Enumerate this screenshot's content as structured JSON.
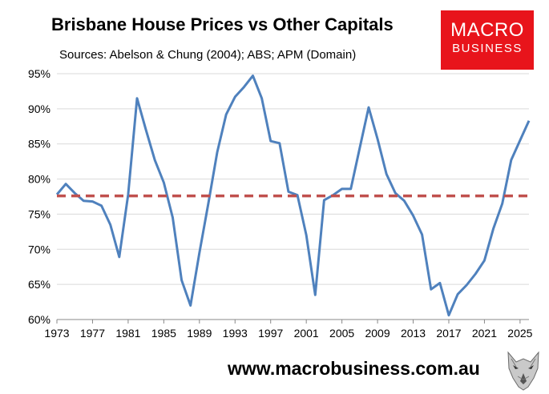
{
  "header": {
    "title": "Brisbane House Prices vs Other Capitals",
    "subtitle": "Sources: Abelson & Chung (2004); ABS; APM (Domain)"
  },
  "logo": {
    "line1": "MACRO",
    "line2": "BUSINESS",
    "color": "#e8141b"
  },
  "footer": {
    "website": "www.macrobusiness.com.au"
  },
  "chart_data": {
    "type": "line",
    "title": "Brisbane House Prices vs Other Capitals",
    "xlim": [
      1973,
      2026
    ],
    "ylim": [
      60,
      95
    ],
    "x_ticks": [
      1973,
      1977,
      1981,
      1985,
      1989,
      1993,
      1997,
      2001,
      2005,
      2009,
      2013,
      2017,
      2021,
      2025
    ],
    "y_ticks": [
      60,
      65,
      70,
      75,
      80,
      85,
      90,
      95
    ],
    "y_tick_labels": [
      "60%",
      "65%",
      "70%",
      "75%",
      "80%",
      "85%",
      "90%",
      "95%"
    ],
    "grid": "horizontal",
    "series": [
      {
        "color": "#4f81bd",
        "style": "solid",
        "x": [
          1973,
          1974,
          1975,
          1976,
          1977,
          1978,
          1979,
          1980,
          1981,
          1982,
          1983,
          1984,
          1985,
          1986,
          1987,
          1988,
          1989,
          1990,
          1991,
          1992,
          1993,
          1994,
          1995,
          1996,
          1997,
          1998,
          1999,
          2000,
          2001,
          2002,
          2003,
          2004,
          2005,
          2006,
          2007,
          2008,
          2009,
          2010,
          2011,
          2012,
          2013,
          2014,
          2015,
          2016,
          2017,
          2018,
          2019,
          2020,
          2021,
          2022,
          2023,
          2024,
          2025,
          2026
        ],
        "values": [
          77.8,
          79.3,
          78.0,
          76.9,
          76.8,
          76.2,
          73.5,
          68.9,
          77.8,
          91.5,
          87.0,
          82.7,
          79.5,
          74.5,
          65.6,
          62.0,
          69.5,
          76.5,
          83.8,
          89.2,
          91.7,
          93.1,
          94.7,
          91.5,
          85.4,
          85.1,
          78.2,
          77.7,
          72.0,
          63.5,
          77.0,
          77.7,
          78.6,
          78.6,
          84.4,
          90.2,
          85.7,
          80.7,
          78.0,
          76.9,
          74.8,
          72.1,
          64.3,
          65.2,
          60.6,
          63.6,
          64.9,
          66.5,
          68.4,
          72.9,
          76.5,
          82.7,
          85.5,
          88.3
        ]
      },
      {
        "color": "#c0504d",
        "style": "dashed",
        "x": [
          1973,
          2026
        ],
        "values": [
          77.6,
          77.6
        ]
      }
    ]
  }
}
